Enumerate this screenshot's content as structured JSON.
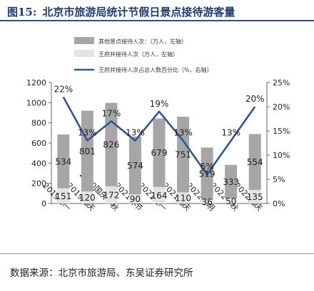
{
  "figure": {
    "label": "图15:",
    "title": "北京市旅游局统计节假日景点接待游客量",
    "source": "数据来源：北京市旅游局、东吴证券研究所"
  },
  "chart_data": {
    "type": "bar",
    "categories": [
      "2019五一",
      "2019国庆",
      "2020国庆中秋",
      "2021春节",
      "2021五一",
      "2021国庆",
      "2022清明",
      "2022中秋",
      "2022国庆"
    ],
    "series": [
      {
        "name": "其他景点接待人次：（万人，左轴）",
        "kind": "bar",
        "axis": "left",
        "color": "#a6a6a6",
        "values": [
          534,
          801,
          826,
          574,
          679,
          751,
          519,
          333,
          554
        ]
      },
      {
        "name": "王府井接待人次（万人，左轴）",
        "kind": "bar",
        "axis": "left",
        "color": "#e3e3e3",
        "values": [
          151,
          120,
          172,
          90,
          164,
          110,
          36,
          50,
          135
        ]
      },
      {
        "name": "王府井接待人次占总人数百分比（%，右轴）",
        "kind": "line",
        "axis": "right",
        "color": "#2f5597",
        "values": [
          22,
          13,
          17,
          13,
          19,
          13,
          6,
          13,
          20
        ],
        "labels": [
          "22%",
          "13%",
          "17%",
          "13%",
          "19%",
          "13%",
          "6%",
          "13%",
          "20%"
        ]
      }
    ],
    "y_left": {
      "min": 0,
      "max": 1200,
      "ticks": [
        0,
        200,
        400,
        600,
        800,
        1000,
        1200
      ]
    },
    "y_right": {
      "min": 0,
      "max": 25,
      "ticks": [
        "0%",
        "5%",
        "10%",
        "15%",
        "20%",
        "25%"
      ]
    },
    "grid": false,
    "legend_position": "top-center"
  }
}
